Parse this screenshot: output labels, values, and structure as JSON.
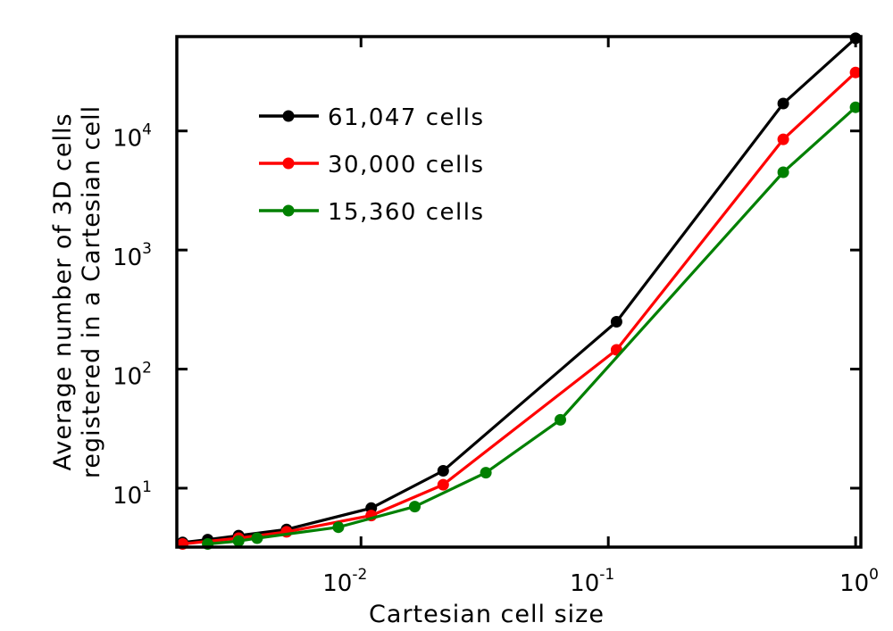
{
  "chart_data": {
    "type": "line",
    "xlabel": "Cartesian cell size",
    "ylabel_lines": [
      "Average number of 3D cells",
      "registered in a Cartesian cell"
    ],
    "xscale": "log",
    "yscale": "log",
    "xlim": [
      0.0018,
      1.05
    ],
    "ylim": [
      3.2,
      62000
    ],
    "grid": false,
    "legend_position": "upper-left",
    "x_ticks": [
      {
        "base": "10",
        "exp": "-2",
        "value": 0.01
      },
      {
        "base": "10",
        "exp": "-1",
        "value": 0.1
      },
      {
        "base": "10",
        "exp": "0",
        "value": 1
      }
    ],
    "y_ticks": [
      {
        "base": "10",
        "exp": "1",
        "value": 10
      },
      {
        "base": "10",
        "exp": "2",
        "value": 100
      },
      {
        "base": "10",
        "exp": "3",
        "value": 1000
      },
      {
        "base": "10",
        "exp": "4",
        "value": 10000
      }
    ],
    "series": [
      {
        "name": "61,047 cells",
        "color": "#000000",
        "x": [
          0.0019,
          0.0024,
          0.0032,
          0.005,
          0.011,
          0.0215,
          0.108,
          0.51,
          1.0
        ],
        "y": [
          3.5,
          3.7,
          4.0,
          4.5,
          6.8,
          14,
          250,
          17000,
          60000
        ]
      },
      {
        "name": "30,000 cells",
        "color": "#ff0000",
        "x": [
          0.0019,
          0.0032,
          0.005,
          0.011,
          0.0215,
          0.108,
          0.51,
          1.0
        ],
        "y": [
          3.4,
          3.8,
          4.3,
          5.9,
          10.7,
          145,
          8500,
          31000
        ]
      },
      {
        "name": "15,360 cells",
        "color": "#008000",
        "x": [
          0.0024,
          0.0032,
          0.0038,
          0.0081,
          0.0165,
          0.032,
          0.064,
          0.51,
          1.0
        ],
        "y": [
          3.4,
          3.6,
          3.8,
          4.7,
          7.0,
          13.5,
          37.5,
          4500,
          15800
        ]
      }
    ]
  }
}
